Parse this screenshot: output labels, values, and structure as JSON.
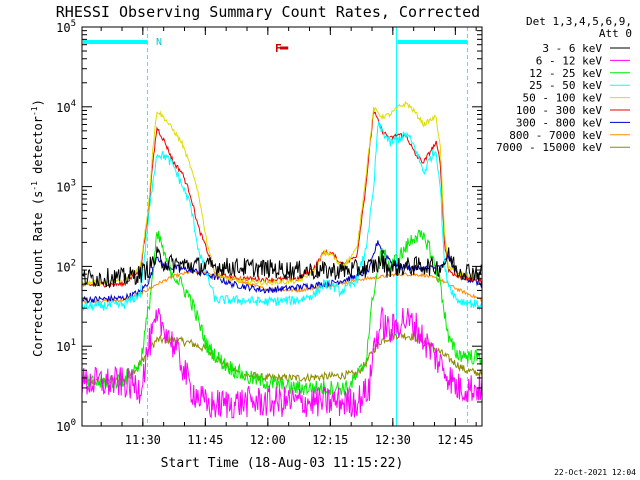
{
  "chart_data": {
    "type": "line",
    "title": "RHESSI Observing Summary Count Rates, Corrected",
    "xlabel": "Start Time (18-Aug-03 11:15:22)",
    "ylabel_main": "Corrected Count Rate (s",
    "ylabel_sup1": "-1",
    "ylabel_mid": " detector",
    "ylabel_sup2": "-1",
    "ylabel_end": ")",
    "y_scale": "log",
    "ylim": [
      1,
      100000
    ],
    "xlim_minutes": [
      0,
      96
    ],
    "x_tick_labels": [
      {
        "label": "11:30",
        "minute": 14.6
      },
      {
        "label": "11:45",
        "minute": 29.6
      },
      {
        "label": "12:00",
        "minute": 44.6
      },
      {
        "label": "12:15",
        "minute": 59.6
      },
      {
        "label": "12:30",
        "minute": 74.6
      },
      {
        "label": "12:45",
        "minute": 89.6
      }
    ],
    "y_tick_labels": [
      {
        "base": "10",
        "exp": "0",
        "value": 1
      },
      {
        "base": "10",
        "exp": "1",
        "value": 10
      },
      {
        "base": "10",
        "exp": "2",
        "value": 100
      },
      {
        "base": "10",
        "exp": "3",
        "value": 1000
      },
      {
        "base": "10",
        "exp": "4",
        "value": 10000
      },
      {
        "base": "10",
        "exp": "5",
        "value": 100000
      }
    ],
    "legend_header": [
      "Det 1,3,4,5,6,9,",
      "Att 0"
    ],
    "legend_position": "right",
    "annotations": {
      "night_marker": "N",
      "flare_marker": "F",
      "flare_color": "#cc0000",
      "accent_color": "#00ffff",
      "night_intervals": [
        [
          0,
          15.7
        ],
        [
          75.5,
          92.5
        ]
      ],
      "flare_interval": [
        47.5,
        49.5
      ],
      "vertical_lines": [
        {
          "minute": 15.7,
          "style": "dashed"
        },
        {
          "minute": 75.5,
          "style": "solid"
        },
        {
          "minute": 92.5,
          "style": "dashed"
        }
      ]
    },
    "date_stamp": "22-Oct-2021 12:04",
    "series": [
      {
        "name": "3 - 6 keV",
        "color": "#000000",
        "noise": 0.12,
        "points": [
          [
            0,
            72
          ],
          [
            10,
            73
          ],
          [
            14,
            80
          ],
          [
            16,
            95
          ],
          [
            18,
            135
          ],
          [
            20,
            110
          ],
          [
            24,
            105
          ],
          [
            30,
            100
          ],
          [
            40,
            97
          ],
          [
            50,
            90
          ],
          [
            58,
            88
          ],
          [
            64,
            90
          ],
          [
            68,
            95
          ],
          [
            71,
            105
          ],
          [
            72,
            125
          ],
          [
            73,
            95
          ],
          [
            76,
            98
          ],
          [
            82,
            102
          ],
          [
            86,
            98
          ],
          [
            88,
            135
          ],
          [
            90,
            92
          ],
          [
            96,
            82
          ]
        ]
      },
      {
        "name": "6 - 12 keV",
        "color": "#ff00ff",
        "noise": 0.2,
        "points": [
          [
            0,
            3.5
          ],
          [
            10,
            3.5
          ],
          [
            14,
            3
          ],
          [
            16,
            10
          ],
          [
            18,
            20
          ],
          [
            20,
            17
          ],
          [
            24,
            6
          ],
          [
            26,
            3
          ],
          [
            30,
            1.8
          ],
          [
            40,
            2
          ],
          [
            50,
            2
          ],
          [
            58,
            2
          ],
          [
            66,
            2
          ],
          [
            69,
            3
          ],
          [
            70,
            10
          ],
          [
            72,
            20
          ],
          [
            74,
            15
          ],
          [
            77,
            22
          ],
          [
            80,
            18
          ],
          [
            82,
            12
          ],
          [
            86,
            6
          ],
          [
            90,
            3
          ],
          [
            96,
            3
          ]
        ]
      },
      {
        "name": "12 - 25 keV",
        "color": "#00ee00",
        "noise": 0.1,
        "points": [
          [
            0,
            3.5
          ],
          [
            6,
            3.5
          ],
          [
            10,
            3.8
          ],
          [
            14,
            6
          ],
          [
            16,
            30
          ],
          [
            17,
            80
          ],
          [
            18,
            240
          ],
          [
            19,
            200
          ],
          [
            20,
            120
          ],
          [
            22,
            80
          ],
          [
            26,
            40
          ],
          [
            30,
            10
          ],
          [
            34,
            6
          ],
          [
            40,
            4
          ],
          [
            50,
            3
          ],
          [
            58,
            3
          ],
          [
            64,
            3
          ],
          [
            68,
            6
          ],
          [
            70,
            50
          ],
          [
            72,
            150
          ],
          [
            74,
            100
          ],
          [
            77,
            150
          ],
          [
            80,
            250
          ],
          [
            83,
            200
          ],
          [
            86,
            60
          ],
          [
            88,
            12
          ],
          [
            90,
            8
          ],
          [
            96,
            7
          ]
        ]
      },
      {
        "name": "25 - 50 keV",
        "color": "#00ffff",
        "noise": 0.06,
        "points": [
          [
            0,
            31
          ],
          [
            10,
            33
          ],
          [
            14,
            45
          ],
          [
            16,
            400
          ],
          [
            17,
            1200
          ],
          [
            18,
            2600
          ],
          [
            20,
            2400
          ],
          [
            22,
            1800
          ],
          [
            26,
            600
          ],
          [
            28,
            160
          ],
          [
            32,
            38
          ],
          [
            36,
            38
          ],
          [
            44,
            36
          ],
          [
            52,
            38
          ],
          [
            56,
            45
          ],
          [
            58,
            60
          ],
          [
            60,
            58
          ],
          [
            62,
            48
          ],
          [
            64,
            55
          ],
          [
            66,
            70
          ],
          [
            68,
            150
          ],
          [
            70,
            900
          ],
          [
            71,
            6000
          ],
          [
            72,
            5000
          ],
          [
            74,
            3500
          ],
          [
            76,
            4000
          ],
          [
            78,
            4500
          ],
          [
            80,
            3000
          ],
          [
            82,
            1500
          ],
          [
            84,
            2500
          ],
          [
            85,
            2800
          ],
          [
            86,
            1000
          ],
          [
            87,
            100
          ],
          [
            88,
            60
          ],
          [
            90,
            38
          ],
          [
            96,
            32
          ]
        ]
      },
      {
        "name": "50 - 100 keV",
        "color": "#dddd00",
        "noise": 0.03,
        "points": [
          [
            0,
            62
          ],
          [
            10,
            65
          ],
          [
            14,
            100
          ],
          [
            16,
            600
          ],
          [
            17,
            3000
          ],
          [
            18,
            9000
          ],
          [
            20,
            7000
          ],
          [
            22,
            5000
          ],
          [
            24,
            3500
          ],
          [
            26,
            1800
          ],
          [
            28,
            800
          ],
          [
            30,
            200
          ],
          [
            32,
            80
          ],
          [
            36,
            68
          ],
          [
            44,
            62
          ],
          [
            52,
            65
          ],
          [
            56,
            90
          ],
          [
            58,
            150
          ],
          [
            60,
            140
          ],
          [
            62,
            100
          ],
          [
            64,
            120
          ],
          [
            66,
            170
          ],
          [
            68,
            1200
          ],
          [
            70,
            9500
          ],
          [
            72,
            7500
          ],
          [
            74,
            8000
          ],
          [
            76,
            10000
          ],
          [
            78,
            11000
          ],
          [
            80,
            8500
          ],
          [
            82,
            6000
          ],
          [
            84,
            7000
          ],
          [
            85,
            7500
          ],
          [
            86,
            3000
          ],
          [
            87,
            250
          ],
          [
            88,
            100
          ],
          [
            90,
            80
          ],
          [
            96,
            72
          ]
        ]
      },
      {
        "name": "100 - 300 keV",
        "color": "#ee0000",
        "noise": 0.03,
        "points": [
          [
            0,
            58
          ],
          [
            10,
            60
          ],
          [
            14,
            90
          ],
          [
            16,
            500
          ],
          [
            17,
            2000
          ],
          [
            18,
            5500
          ],
          [
            20,
            3500
          ],
          [
            22,
            2000
          ],
          [
            24,
            1500
          ],
          [
            26,
            800
          ],
          [
            28,
            300
          ],
          [
            30,
            160
          ],
          [
            32,
            80
          ],
          [
            36,
            72
          ],
          [
            44,
            68
          ],
          [
            52,
            70
          ],
          [
            56,
            100
          ],
          [
            58,
            150
          ],
          [
            60,
            145
          ],
          [
            62,
            110
          ],
          [
            64,
            115
          ],
          [
            66,
            140
          ],
          [
            68,
            900
          ],
          [
            70,
            9000
          ],
          [
            72,
            5000
          ],
          [
            74,
            4000
          ],
          [
            76,
            4500
          ],
          [
            78,
            4200
          ],
          [
            80,
            2500
          ],
          [
            82,
            2000
          ],
          [
            84,
            3000
          ],
          [
            85,
            3500
          ],
          [
            86,
            2000
          ],
          [
            87,
            200
          ],
          [
            88,
            90
          ],
          [
            90,
            75
          ],
          [
            96,
            65
          ]
        ]
      },
      {
        "name": "300 - 800 keV",
        "color": "#0000cc",
        "noise": 0.04,
        "points": [
          [
            0,
            38
          ],
          [
            10,
            40
          ],
          [
            14,
            48
          ],
          [
            16,
            65
          ],
          [
            17,
            90
          ],
          [
            18,
            140
          ],
          [
            19,
            110
          ],
          [
            20,
            100
          ],
          [
            26,
            90
          ],
          [
            30,
            80
          ],
          [
            36,
            60
          ],
          [
            44,
            50
          ],
          [
            52,
            55
          ],
          [
            60,
            62
          ],
          [
            66,
            75
          ],
          [
            69,
            90
          ],
          [
            70,
            140
          ],
          [
            71,
            210
          ],
          [
            72,
            160
          ],
          [
            74,
            120
          ],
          [
            76,
            100
          ],
          [
            80,
            95
          ],
          [
            84,
            95
          ],
          [
            86,
            98
          ],
          [
            88,
            130
          ],
          [
            90,
            80
          ],
          [
            96,
            60
          ]
        ]
      },
      {
        "name": "800 - 7000 keV",
        "color": "#ff8c00",
        "noise": 0.02,
        "points": [
          [
            0,
            36
          ],
          [
            10,
            38
          ],
          [
            14,
            45
          ],
          [
            18,
            60
          ],
          [
            22,
            75
          ],
          [
            26,
            85
          ],
          [
            30,
            82
          ],
          [
            36,
            70
          ],
          [
            44,
            52
          ],
          [
            52,
            50
          ],
          [
            60,
            58
          ],
          [
            66,
            68
          ],
          [
            70,
            72
          ],
          [
            76,
            80
          ],
          [
            82,
            78
          ],
          [
            86,
            68
          ],
          [
            90,
            52
          ],
          [
            96,
            38
          ]
        ]
      },
      {
        "name": "7000 - 15000 keV",
        "color": "#8b8b00",
        "noise": 0.05,
        "points": [
          [
            0,
            3.5
          ],
          [
            10,
            3.7
          ],
          [
            14,
            6
          ],
          [
            16,
            9
          ],
          [
            18,
            12
          ],
          [
            22,
            12
          ],
          [
            26,
            11
          ],
          [
            30,
            9
          ],
          [
            34,
            6
          ],
          [
            38,
            4.5
          ],
          [
            44,
            4
          ],
          [
            52,
            4
          ],
          [
            60,
            4.2
          ],
          [
            66,
            4.5
          ],
          [
            68,
            6
          ],
          [
            70,
            9
          ],
          [
            72,
            12
          ],
          [
            76,
            14
          ],
          [
            80,
            13
          ],
          [
            84,
            10
          ],
          [
            88,
            7
          ],
          [
            92,
            5
          ],
          [
            96,
            4.5
          ]
        ]
      }
    ]
  }
}
